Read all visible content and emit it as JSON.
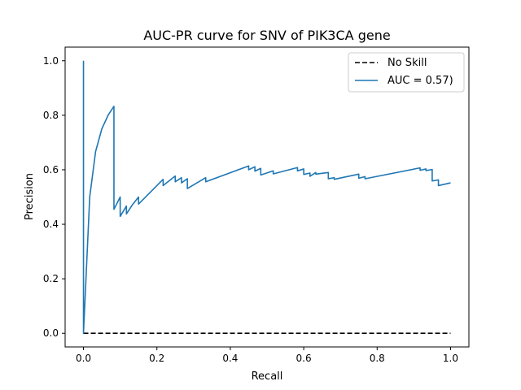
{
  "chart_data": {
    "type": "line",
    "title": "AUC-PR curve for SNV of PIK3CA gene",
    "xlabel": "Recall",
    "ylabel": "Precision",
    "xlim": [
      -0.05,
      1.05
    ],
    "ylim": [
      -0.05,
      1.05
    ],
    "xticks": [
      0.0,
      0.2,
      0.4,
      0.6,
      0.8,
      1.0
    ],
    "yticks": [
      0.0,
      0.2,
      0.4,
      0.6,
      0.8,
      1.0
    ],
    "tick_labels_x": [
      "0.0",
      "0.2",
      "0.4",
      "0.6",
      "0.8",
      "1.0"
    ],
    "tick_labels_y": [
      "0.0",
      "0.2",
      "0.4",
      "0.6",
      "0.8",
      "1.0"
    ],
    "grid": false,
    "legend_position": "top-right",
    "series": [
      {
        "name": "No Skill",
        "color": "#000000",
        "style": "dashed",
        "x": [
          0.0,
          1.0
        ],
        "y": [
          0.0,
          0.0
        ]
      },
      {
        "name": "AUC = 0.57)",
        "color": "#1f77b4",
        "style": "solid",
        "x": [
          0.0,
          0.0,
          0.017,
          0.033,
          0.05,
          0.067,
          0.083,
          0.083,
          0.1,
          0.1,
          0.117,
          0.117,
          0.133,
          0.15,
          0.15,
          0.217,
          0.217,
          0.25,
          0.25,
          0.267,
          0.267,
          0.283,
          0.283,
          0.333,
          0.333,
          0.45,
          0.45,
          0.467,
          0.467,
          0.483,
          0.483,
          0.517,
          0.517,
          0.583,
          0.583,
          0.6,
          0.6,
          0.617,
          0.617,
          0.633,
          0.633,
          0.667,
          0.667,
          0.683,
          0.683,
          0.75,
          0.75,
          0.767,
          0.767,
          0.917,
          0.917,
          0.933,
          0.933,
          0.95,
          0.95,
          0.967,
          0.967,
          1.0
        ],
        "y": [
          1.0,
          0.0,
          0.5,
          0.667,
          0.75,
          0.8,
          0.833,
          0.455,
          0.5,
          0.429,
          0.467,
          0.438,
          0.471,
          0.5,
          0.474,
          0.565,
          0.542,
          0.577,
          0.556,
          0.571,
          0.552,
          0.567,
          0.531,
          0.571,
          0.556,
          0.614,
          0.6,
          0.611,
          0.595,
          0.605,
          0.581,
          0.596,
          0.585,
          0.608,
          0.596,
          0.603,
          0.583,
          0.588,
          0.576,
          0.59,
          0.584,
          0.59,
          0.567,
          0.571,
          0.565,
          0.584,
          0.569,
          0.575,
          0.567,
          0.607,
          0.598,
          0.603,
          0.597,
          0.601,
          0.559,
          0.563,
          0.542,
          0.552
        ]
      }
    ]
  }
}
